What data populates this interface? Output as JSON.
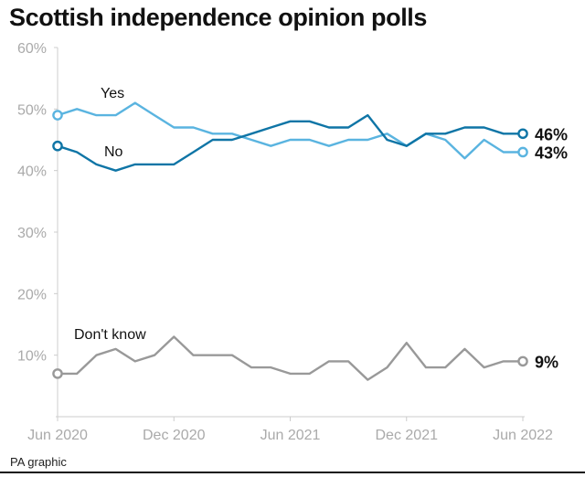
{
  "title": "Scottish independence opinion polls",
  "footer": "PA graphic",
  "chart_data": {
    "type": "line",
    "title": "Scottish independence opinion polls",
    "ylim": [
      0,
      60
    ],
    "yticks": [
      10,
      20,
      30,
      40,
      50,
      60
    ],
    "ytick_labels": [
      "10%",
      "20%",
      "30%",
      "40%",
      "50%",
      "60%"
    ],
    "xlim": [
      0,
      24
    ],
    "xticks": [
      0,
      6,
      12,
      18,
      24
    ],
    "xtick_labels": [
      "Jun 2020",
      "Dec 2020",
      "Jun 2021",
      "Dec 2021",
      "Jun 2022"
    ],
    "grid": false,
    "legend": "inline labels",
    "series": [
      {
        "name": "Yes",
        "color": "#5ab4e0",
        "end_label": "43%",
        "points": [
          [
            0,
            49
          ],
          [
            1,
            50
          ],
          [
            2,
            49
          ],
          [
            3,
            49
          ],
          [
            4,
            51
          ],
          [
            5,
            49
          ],
          [
            6,
            47
          ],
          [
            7,
            47
          ],
          [
            8,
            46
          ],
          [
            9,
            46
          ],
          [
            10,
            45
          ],
          [
            11,
            44
          ],
          [
            12,
            45
          ],
          [
            13,
            45
          ],
          [
            14,
            44
          ],
          [
            15,
            45
          ],
          [
            16,
            45
          ],
          [
            17,
            46
          ],
          [
            18,
            44
          ],
          [
            19,
            46
          ],
          [
            20,
            45
          ],
          [
            21,
            42
          ],
          [
            22,
            45
          ],
          [
            23,
            43
          ],
          [
            24,
            43
          ]
        ]
      },
      {
        "name": "No",
        "color": "#0f75a6",
        "end_label": "46%",
        "points": [
          [
            0,
            44
          ],
          [
            1,
            43
          ],
          [
            2,
            41
          ],
          [
            3,
            40
          ],
          [
            4,
            41
          ],
          [
            5,
            41
          ],
          [
            6,
            41
          ],
          [
            7,
            43
          ],
          [
            8,
            45
          ],
          [
            9,
            45
          ],
          [
            10,
            46
          ],
          [
            11,
            47
          ],
          [
            12,
            48
          ],
          [
            13,
            48
          ],
          [
            14,
            47
          ],
          [
            15,
            47
          ],
          [
            16,
            49
          ],
          [
            17,
            45
          ],
          [
            18,
            44
          ],
          [
            19,
            46
          ],
          [
            20,
            46
          ],
          [
            21,
            47
          ],
          [
            22,
            47
          ],
          [
            23,
            46
          ],
          [
            24,
            46
          ]
        ]
      },
      {
        "name": "Don't know",
        "color": "#999999",
        "end_label": "9%",
        "points": [
          [
            0,
            7
          ],
          [
            1,
            7
          ],
          [
            2,
            10
          ],
          [
            3,
            11
          ],
          [
            4,
            9
          ],
          [
            5,
            10
          ],
          [
            6,
            13
          ],
          [
            7,
            10
          ],
          [
            8,
            10
          ],
          [
            9,
            10
          ],
          [
            10,
            8
          ],
          [
            11,
            8
          ],
          [
            12,
            7
          ],
          [
            13,
            7
          ],
          [
            14,
            9
          ],
          [
            15,
            9
          ],
          [
            16,
            6
          ],
          [
            17,
            8
          ],
          [
            18,
            12
          ],
          [
            19,
            8
          ],
          [
            20,
            8
          ],
          [
            21,
            11
          ],
          [
            22,
            8
          ],
          [
            23,
            9
          ],
          [
            24,
            9
          ]
        ]
      }
    ]
  }
}
